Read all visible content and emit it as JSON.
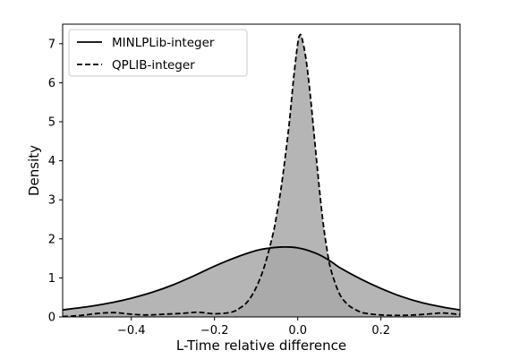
{
  "chart_data": {
    "type": "area",
    "title": "",
    "xlabel": "L-Time relative difference",
    "ylabel": "Density",
    "xlim": [
      -0.565,
      0.39
    ],
    "ylim": [
      0,
      7.5
    ],
    "x_ticks": [
      -0.4,
      -0.2,
      0.0,
      0.2
    ],
    "x_tick_labels": [
      "−0.4",
      "−0.2",
      "0.0",
      "0.2"
    ],
    "y_ticks": [
      0,
      1,
      2,
      3,
      4,
      5,
      6,
      7
    ],
    "y_tick_labels": [
      "0",
      "1",
      "2",
      "3",
      "4",
      "5",
      "6",
      "7"
    ],
    "grid": false,
    "legend_position": "top-left",
    "fill_color": "#a8a8a8",
    "fill_opacity": 0.85,
    "line_color": "#000000",
    "series": [
      {
        "name": "MINLPLib-integer",
        "line_style": "solid",
        "x": [
          -0.565,
          -0.5,
          -0.45,
          -0.4,
          -0.35,
          -0.3,
          -0.25,
          -0.2,
          -0.15,
          -0.1,
          -0.07,
          -0.04,
          -0.02,
          0.0,
          0.02,
          0.05,
          0.08,
          0.1,
          0.15,
          0.2,
          0.25,
          0.3,
          0.35,
          0.39
        ],
        "y": [
          0.18,
          0.27,
          0.36,
          0.48,
          0.63,
          0.82,
          1.05,
          1.3,
          1.52,
          1.7,
          1.76,
          1.79,
          1.79,
          1.77,
          1.72,
          1.6,
          1.42,
          1.27,
          0.98,
          0.73,
          0.52,
          0.36,
          0.25,
          0.18
        ]
      },
      {
        "name": "QPLIB-integer",
        "line_style": "dashed",
        "x": [
          -0.565,
          -0.52,
          -0.48,
          -0.44,
          -0.4,
          -0.36,
          -0.32,
          -0.28,
          -0.24,
          -0.2,
          -0.16,
          -0.14,
          -0.12,
          -0.1,
          -0.08,
          -0.06,
          -0.05,
          -0.04,
          -0.03,
          -0.02,
          -0.01,
          0.0,
          0.005,
          0.01,
          0.02,
          0.03,
          0.04,
          0.05,
          0.06,
          0.07,
          0.08,
          0.1,
          0.12,
          0.14,
          0.16,
          0.2,
          0.24,
          0.28,
          0.32,
          0.35,
          0.39
        ],
        "y": [
          0.01,
          0.04,
          0.09,
          0.11,
          0.07,
          0.05,
          0.07,
          0.09,
          0.12,
          0.08,
          0.12,
          0.22,
          0.4,
          0.75,
          1.3,
          2.1,
          2.65,
          3.3,
          4.1,
          5.0,
          6.1,
          7.0,
          7.22,
          7.15,
          6.6,
          5.7,
          4.6,
          3.5,
          2.5,
          1.75,
          1.2,
          0.6,
          0.32,
          0.18,
          0.1,
          0.05,
          0.04,
          0.05,
          0.08,
          0.1,
          0.06
        ]
      }
    ]
  }
}
